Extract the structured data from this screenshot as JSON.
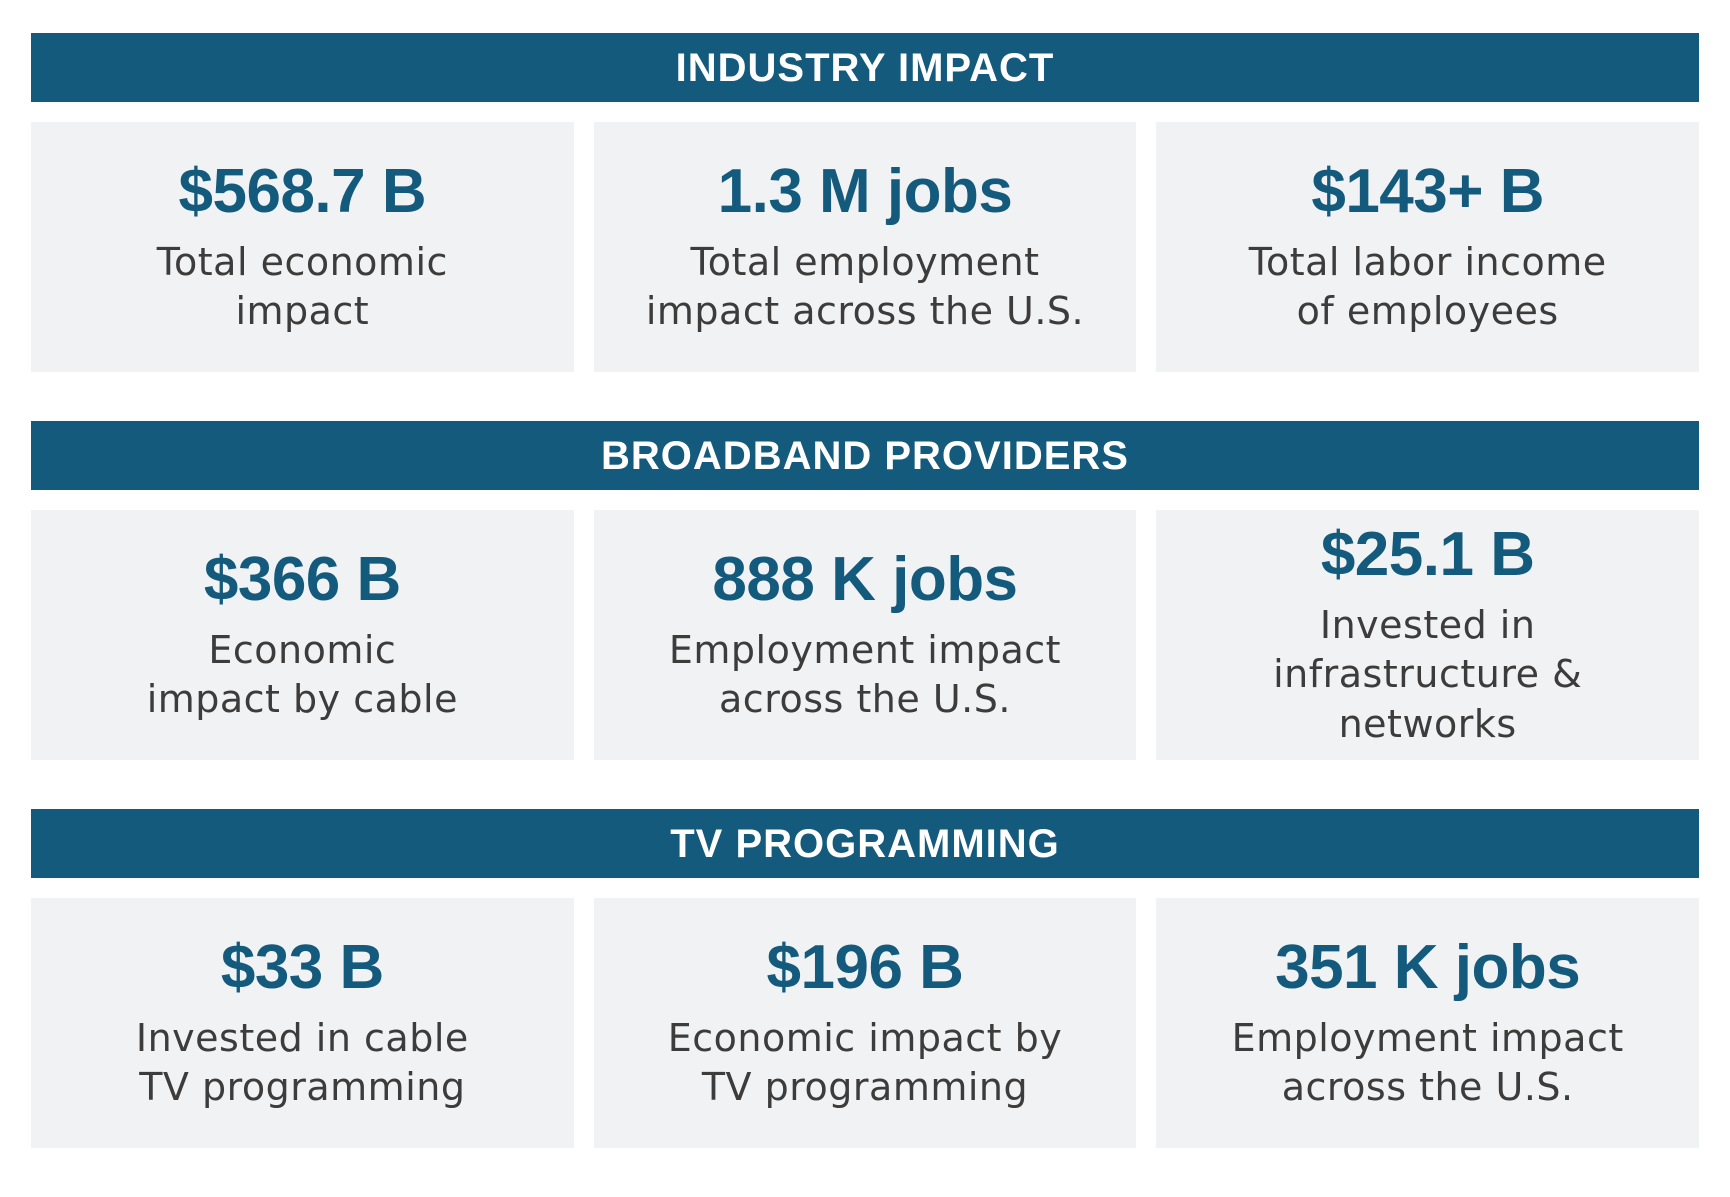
{
  "sections": [
    {
      "title": "INDUSTRY IMPACT",
      "cards": [
        {
          "value": "$568.7 B",
          "lines": [
            "Total economic",
            "impact"
          ]
        },
        {
          "value": "1.3 M jobs",
          "lines": [
            "Total employment",
            "impact across the U.S."
          ]
        },
        {
          "value": "$143+ B",
          "lines": [
            "Total labor income",
            "of employees"
          ]
        }
      ]
    },
    {
      "title": "BROADBAND PROVIDERS",
      "cards": [
        {
          "value": "$366 B",
          "lines": [
            "Economic",
            "impact by cable"
          ]
        },
        {
          "value": "888 K jobs",
          "lines": [
            "Employment impact",
            "across the U.S."
          ]
        },
        {
          "value": "$25.1 B",
          "lines": [
            "Invested in",
            "infrastructure & networks"
          ]
        }
      ]
    },
    {
      "title": "TV PROGRAMMING",
      "cards": [
        {
          "value": "$33 B",
          "lines": [
            "Invested in cable",
            "TV programming"
          ]
        },
        {
          "value": "$196 B",
          "lines": [
            "Economic impact by",
            "TV programming"
          ]
        },
        {
          "value": "351 K jobs",
          "lines": [
            "Employment impact",
            "across the U.S."
          ]
        }
      ]
    }
  ],
  "colors": {
    "header_bg": "#135a7c",
    "header_text": "#ffffff",
    "card_bg": "#f1f2f4",
    "value_text": "#135a7c",
    "desc_text": "#3c3c3c"
  }
}
